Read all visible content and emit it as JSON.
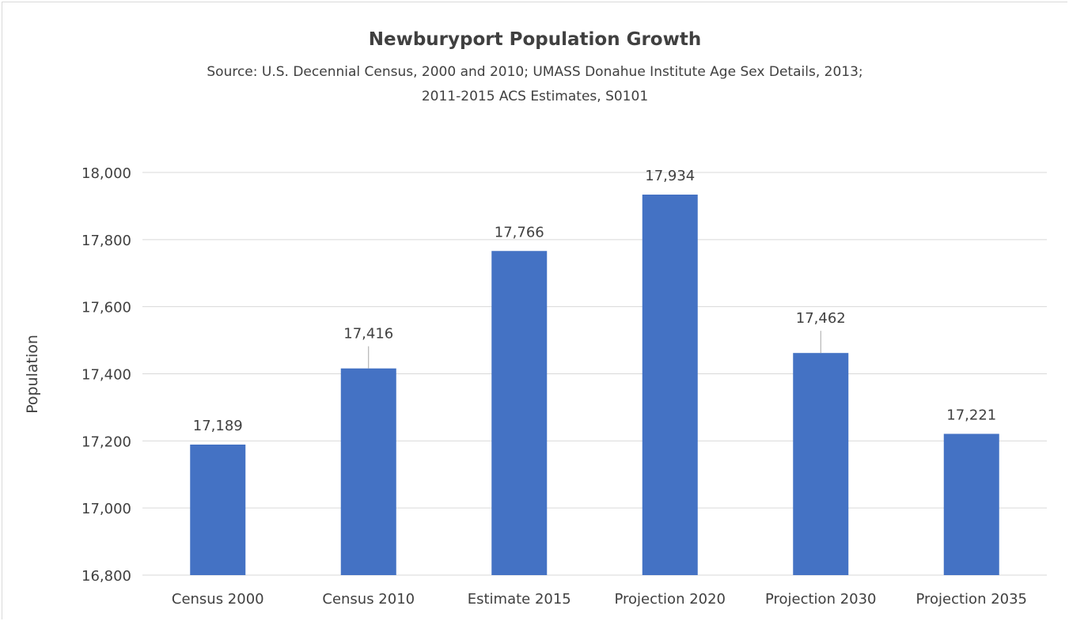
{
  "chart_data": {
    "type": "bar",
    "title": "Newburyport Population Growth",
    "subtitle_lines": [
      "Source:  U.S. Decennial Census, 2000 and 2010; UMASS Donahue Institute Age Sex Details, 2013;",
      "2011-2015 ACS Estimates, S0101"
    ],
    "xlabel": "",
    "ylabel": "Population",
    "categories": [
      "Census 2000",
      "Census 2010",
      "Estimate 2015",
      "Projection 2020",
      "Projection 2030",
      "Projection 2035"
    ],
    "values": [
      17189,
      17416,
      17766,
      17934,
      17462,
      17221
    ],
    "data_labels": [
      "17,189",
      "17,416",
      "17,766",
      "17,934",
      "17,462",
      "17,221"
    ],
    "ylim": [
      16800,
      18000
    ],
    "yticks": [
      16800,
      17000,
      17200,
      17400,
      17600,
      17800,
      18000
    ],
    "ytick_labels": [
      "16,800",
      "17,000",
      "17,200",
      "17,400",
      "17,600",
      "17,800",
      "18,000"
    ],
    "grid": true,
    "legend": "none",
    "bar_color": "#4472c4"
  }
}
